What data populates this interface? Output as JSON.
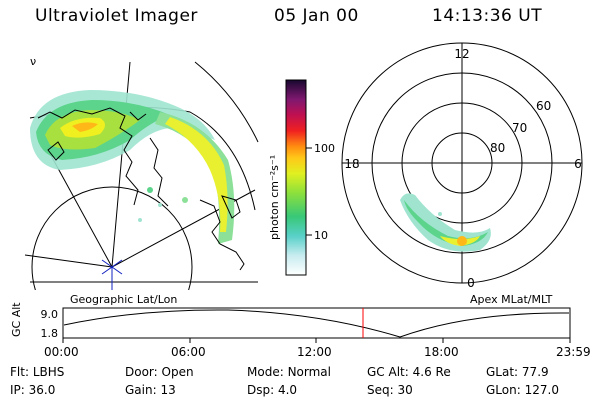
{
  "header": {
    "instrument": "Ultraviolet Imager",
    "date": "05 Jan 00",
    "time": "14:13:36 UT"
  },
  "colorbar": {
    "label": "photon cm⁻²s⁻¹",
    "ticks": [
      "100",
      "10"
    ]
  },
  "geo_panel": {
    "label": "Geographic Lat/Lon",
    "corner_glyph": "ν"
  },
  "apex_panel": {
    "label": "Apex MLat/MLT",
    "mlt_labels": {
      "top": "12",
      "left": "18",
      "right": "6",
      "bottom": "0"
    },
    "lat_labels": [
      "60",
      "70",
      "80"
    ]
  },
  "altitude_plot": {
    "ylabel": "GC Alt",
    "yticks": [
      "9.0",
      "1.8"
    ],
    "xticks": [
      "00:00",
      "06:00",
      "12:00",
      "18:00",
      "23:59"
    ],
    "current_time_marker": "14:13:36",
    "marker_color": "#ff0000"
  },
  "status": {
    "filter": {
      "label": "Flt:",
      "value": "LBHS"
    },
    "ip": {
      "label": "IP:",
      "value": "36.0"
    },
    "door": {
      "label": "Door:",
      "value": "Open"
    },
    "gain": {
      "label": "Gain:",
      "value": "13"
    },
    "mode": {
      "label": "Mode:",
      "value": "Normal"
    },
    "dsp": {
      "label": "Dsp:",
      "value": "4.0"
    },
    "gc_alt": {
      "label": "GC Alt:",
      "value": "4.6 Re"
    },
    "seq": {
      "label": "Seq:",
      "value": "30"
    },
    "glat": {
      "label": "GLat:",
      "value": "77.9"
    },
    "glon": {
      "label": "GLon:",
      "value": "127.0"
    }
  }
}
